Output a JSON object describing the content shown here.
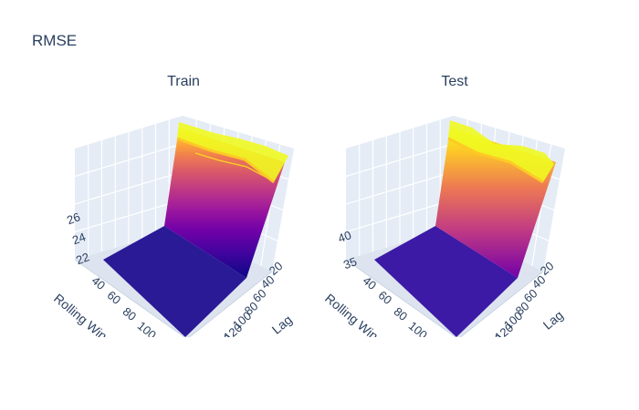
{
  "title": "RMSE",
  "chart_data": [
    {
      "type": "surface",
      "subtitle": "Train",
      "axes": {
        "x": {
          "label": "Lag",
          "ticks": [
            "20",
            "40",
            "60",
            "80",
            "100",
            "120",
            "140"
          ]
        },
        "y": {
          "label": "Rolling Window",
          "ticks": [
            "40",
            "60",
            "80",
            "100"
          ]
        },
        "z": {
          "label": "",
          "ticks": [
            "22",
            "24",
            "26"
          ]
        }
      },
      "colorscale": [
        "#0d0887",
        "#46039f",
        "#7201a8",
        "#9c179e",
        "#bd3786",
        "#d8576b",
        "#ed7953",
        "#fb9f3a",
        "#fdca26",
        "#f0f921"
      ]
    },
    {
      "type": "surface",
      "subtitle": "Test",
      "axes": {
        "x": {
          "label": "Lag",
          "ticks": [
            "20",
            "40",
            "60",
            "80",
            "100",
            "120",
            "140"
          ]
        },
        "y": {
          "label": "Rolling Window",
          "ticks": [
            "40",
            "60",
            "80",
            "100"
          ]
        },
        "z": {
          "label": "",
          "ticks": [
            "35",
            "40"
          ]
        }
      },
      "colorscale": [
        "#0d0887",
        "#46039f",
        "#7201a8",
        "#9c179e",
        "#bd3786",
        "#d8576b",
        "#ed7953",
        "#fb9f3a",
        "#fdca26",
        "#f0f921"
      ]
    }
  ]
}
